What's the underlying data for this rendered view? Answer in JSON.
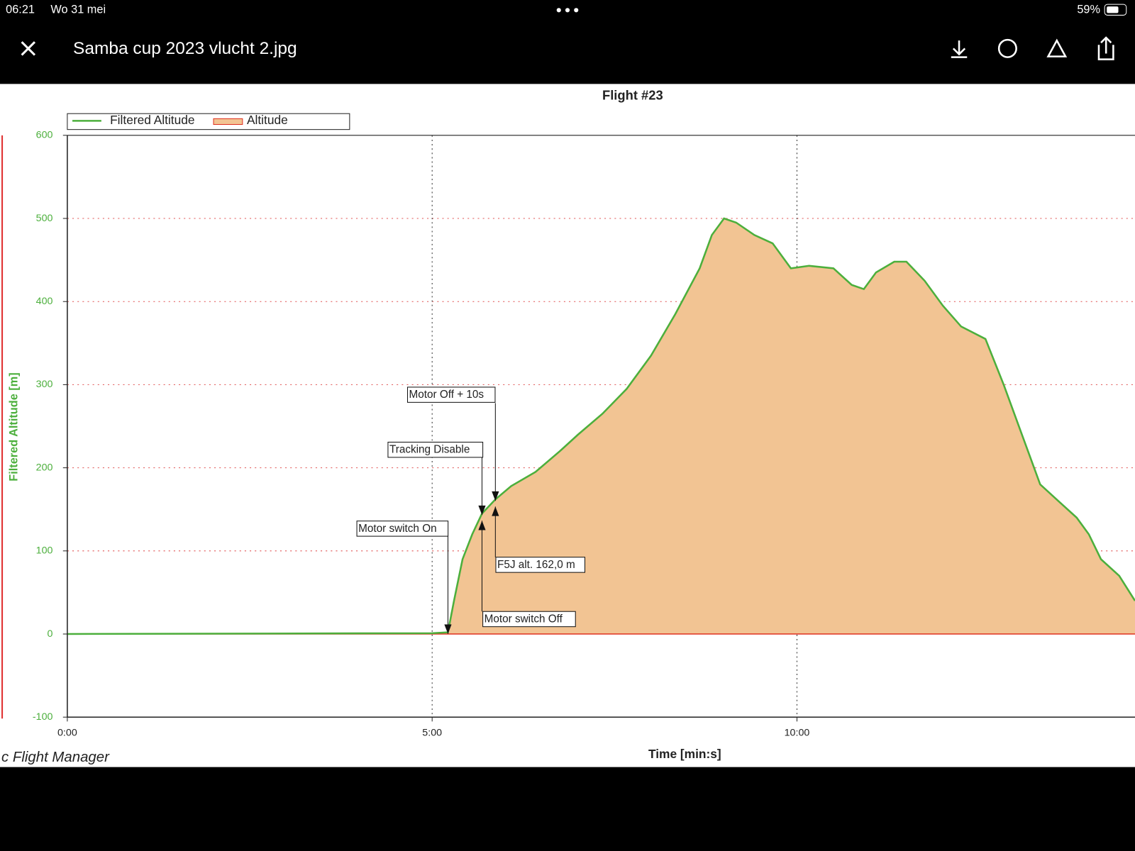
{
  "status_bar": {
    "time": "06:21",
    "date": "Wo 31 mei",
    "battery": "59%"
  },
  "header": {
    "title": "Samba cup 2023 vlucht 2.jpg"
  },
  "footer": "c Flight Manager",
  "chart_data": {
    "type": "area",
    "title": "Flight #23",
    "x_label": "Time [min:s]",
    "y_label": "Filtered Altitude [m]",
    "x": [
      0,
      300,
      313,
      318,
      325,
      333,
      341,
      352,
      365,
      385,
      405,
      420,
      440,
      460,
      480,
      500,
      520,
      530,
      540,
      550,
      565,
      580,
      595,
      610,
      630,
      645,
      655,
      665,
      680,
      690,
      705,
      720,
      735,
      755,
      770,
      785,
      800,
      815,
      830,
      840,
      850,
      865,
      878
    ],
    "series": [
      {
        "name": "Filtered Altitude",
        "color": "#4caf3c",
        "values": [
          0,
          1,
          2,
          40,
          90,
          120,
          145,
          162,
          178,
          195,
          220,
          240,
          265,
          295,
          335,
          385,
          440,
          480,
          500,
          495,
          480,
          470,
          440,
          443,
          440,
          420,
          415,
          435,
          448,
          448,
          425,
          395,
          370,
          355,
          300,
          240,
          180,
          160,
          140,
          120,
          90,
          70,
          40
        ]
      },
      {
        "name": "Altitude",
        "color": "#f2c493",
        "values": [
          0,
          1,
          2,
          40,
          90,
          120,
          145,
          162,
          178,
          195,
          220,
          240,
          265,
          295,
          335,
          385,
          440,
          480,
          500,
          495,
          480,
          470,
          440,
          443,
          440,
          420,
          415,
          435,
          448,
          448,
          425,
          395,
          370,
          355,
          300,
          240,
          180,
          160,
          140,
          120,
          90,
          70,
          40
        ]
      }
    ],
    "xlim": [
      0,
      878
    ],
    "xticks": [
      {
        "value": 0,
        "label": "0:00"
      },
      {
        "value": 300,
        "label": "5:00"
      },
      {
        "value": 600,
        "label": "10:00"
      }
    ],
    "ylim": [
      -100,
      600
    ],
    "yticks": [
      -100,
      0,
      100,
      200,
      300,
      400,
      500,
      600
    ],
    "grid": true,
    "annotations": [
      {
        "text": "Motor switch On",
        "x": 313
      },
      {
        "text": "Motor switch Off",
        "x": 341
      },
      {
        "text": "Tracking Disable",
        "x": 341
      },
      {
        "text": "Motor Off + 10s",
        "x": 352
      },
      {
        "text": "F5J alt. 162,0 m",
        "x": 352
      }
    ]
  }
}
